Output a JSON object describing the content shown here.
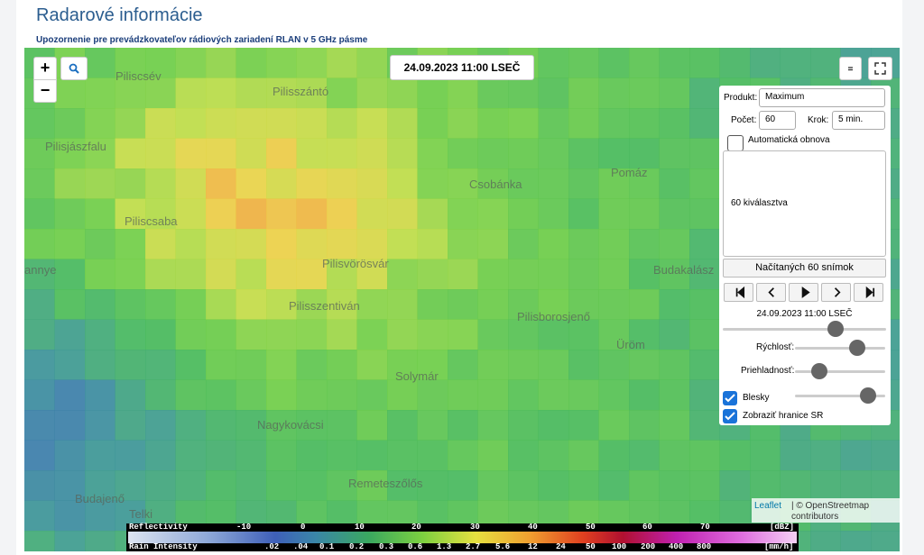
{
  "header": {
    "title": "Radarové informácie",
    "notice": "Upozornenie pre prevádzkovateľov rádiových zariadení RLAN v 5 GHz pásme"
  },
  "map": {
    "timestamp": "24.09.2023 11:00 LSEČ",
    "zoom_in": "+",
    "zoom_out": "−",
    "places": [
      "Piliscsév",
      "Pilisszántó",
      "Pilisjászfalu",
      "Csobánka",
      "Pomáz",
      "Piliscsaba",
      "Pilisvörösvár",
      "annye",
      "Budakalász",
      "Pilisszentiván",
      "Pilisborosjenő",
      "Üröm",
      "Solymár",
      "Nagykovácsi",
      "Remeteszőlős",
      "Budajenő",
      "Telki"
    ]
  },
  "controls": {
    "product_label": "Produkt:",
    "product": "Maximum",
    "count_label": "Počet:",
    "count": "60",
    "step_label": "Krok:",
    "step": "5 min.",
    "auto_refresh": "Automatická obnova",
    "selection": "60 kiválasztva",
    "load_button": "Načítaných 60 snímok",
    "frame_time": "24.09.2023 11:00 LSEČ",
    "speed": "Rýchlosť:",
    "opacity": "Priehladnosť:",
    "lightning": "Blesky",
    "border": "Zobraziť hranice SR"
  },
  "attribution": {
    "leaflet": "Leaflet",
    "rest": "| © OpenStreetmap contributors"
  },
  "legend": {
    "reflectivity_title": "Reflectivity",
    "reflectivity_ticks": [
      "-10",
      "0",
      "10",
      "20",
      "30",
      "40",
      "50",
      "60",
      "70"
    ],
    "reflectivity_unit": "[dBZ]",
    "rain_title": "Rain Intensity",
    "rain_ticks": [
      ".02",
      ".04",
      "0.1",
      "0.2",
      "0.3",
      "0.6",
      "1.3",
      "2.7",
      "5.6",
      "12",
      "24",
      "50",
      "100",
      "200",
      "400",
      "800"
    ],
    "rain_unit": "[mm/h]"
  }
}
